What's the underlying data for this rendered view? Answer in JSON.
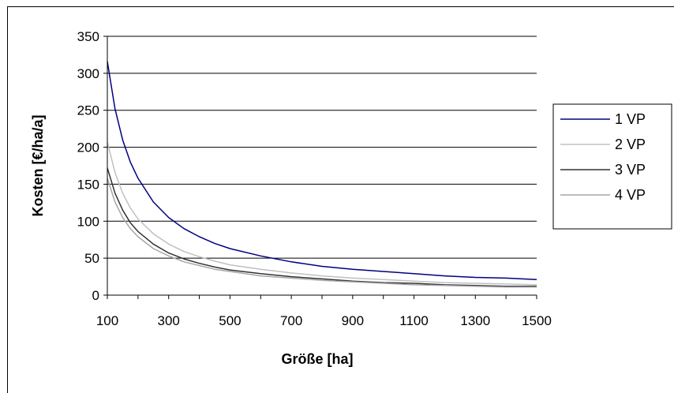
{
  "chart_data": {
    "type": "line",
    "title": "",
    "xlabel": "Größe [ha]",
    "ylabel": "Kosten [€/ha/a]",
    "xlim": [
      100,
      1500
    ],
    "ylim": [
      0,
      350
    ],
    "x_ticks": [
      100,
      300,
      500,
      700,
      900,
      1100,
      1300,
      1500
    ],
    "y_ticks": [
      0,
      50,
      100,
      150,
      200,
      250,
      300,
      350
    ],
    "grid": "horizontal",
    "legend_position": "right",
    "x": [
      100,
      125,
      150,
      175,
      200,
      250,
      300,
      350,
      400,
      450,
      500,
      600,
      700,
      800,
      900,
      1000,
      1100,
      1200,
      1300,
      1400,
      1500
    ],
    "series": [
      {
        "name": "1 VP",
        "color": "#000080",
        "values": [
          316,
          252,
          210,
          180,
          158,
          126,
          105,
          90,
          79,
          70,
          63,
          53,
          45,
          39,
          35,
          32,
          29,
          26,
          24,
          23,
          21
        ]
      },
      {
        "name": "2 VP",
        "color": "#c0c0c0",
        "values": [
          207,
          166,
          138,
          118,
          103,
          83,
          69,
          59,
          52,
          46,
          41,
          35,
          30,
          26,
          23,
          21,
          19,
          17,
          16,
          15,
          14
        ]
      },
      {
        "name": "3 VP",
        "color": "#333333",
        "values": [
          172,
          138,
          115,
          98,
          86,
          69,
          57,
          49,
          43,
          38,
          34,
          29,
          25,
          22,
          19,
          17,
          16,
          14,
          13,
          12,
          12
        ]
      },
      {
        "name": "4 VP",
        "color": "#a6a6a6",
        "values": [
          158,
          126,
          105,
          90,
          79,
          63,
          53,
          45,
          40,
          35,
          32,
          26,
          23,
          20,
          18,
          16,
          14,
          13,
          12,
          11,
          11
        ]
      }
    ]
  }
}
